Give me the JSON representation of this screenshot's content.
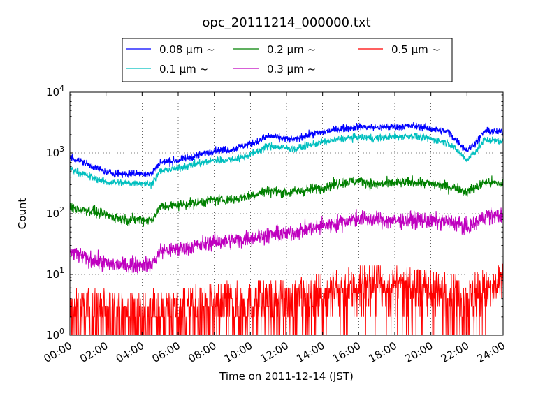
{
  "chart_data": {
    "type": "line",
    "title": "opc_20111214_000000.txt",
    "xlabel": "Time on 2011-12-14 (JST)",
    "ylabel": "Count",
    "x_ticks": [
      "00:00",
      "02:00",
      "04:00",
      "06:00",
      "08:00",
      "10:00",
      "12:00",
      "14:00",
      "16:00",
      "18:00",
      "20:00",
      "22:00",
      "24:00"
    ],
    "x_range_hours": [
      0,
      24
    ],
    "y_scale": "log",
    "ylim": [
      1,
      10000
    ],
    "y_tick_base": "10",
    "y_tick_exponents": [
      "0",
      "1",
      "2",
      "3",
      "4"
    ],
    "grid": true,
    "legend_placement": "top-center",
    "series": [
      {
        "name": "0.08 μm ~",
        "color": "#0000ff",
        "x": [
          0,
          0.5,
          1,
          2,
          3,
          4,
          4.5,
          5,
          6,
          7,
          8,
          9,
          9.5,
          10,
          10.5,
          11,
          12,
          12.5,
          13,
          14,
          15,
          16,
          17,
          18,
          19,
          20,
          21,
          21.5,
          22,
          22.5,
          23,
          24
        ],
        "y": [
          850,
          750,
          650,
          480,
          450,
          460,
          450,
          700,
          750,
          900,
          1100,
          1150,
          1300,
          1400,
          1600,
          1900,
          1700,
          1650,
          1900,
          2200,
          2500,
          2700,
          2600,
          2700,
          2800,
          2500,
          2200,
          1500,
          1100,
          1500,
          2300,
          2200
        ]
      },
      {
        "name": "0.1 μm ~",
        "color": "#00bfbf",
        "x": [
          0,
          0.5,
          1,
          2,
          3,
          4,
          4.5,
          5,
          6,
          7,
          8,
          9,
          9.5,
          10,
          10.5,
          11,
          12,
          12.5,
          13,
          14,
          15,
          16,
          17,
          18,
          19,
          20,
          21,
          21.5,
          22,
          22.5,
          23,
          24
        ],
        "y": [
          560,
          480,
          420,
          330,
          320,
          320,
          310,
          500,
          560,
          660,
          750,
          780,
          850,
          950,
          1100,
          1300,
          1200,
          1150,
          1300,
          1500,
          1700,
          1800,
          1750,
          1850,
          1900,
          1700,
          1450,
          1050,
          770,
          1100,
          1650,
          1550
        ]
      },
      {
        "name": "0.2 μm ~",
        "color": "#008000",
        "x": [
          0,
          1,
          2,
          3,
          4,
          4.5,
          5,
          6,
          7,
          8,
          9,
          10,
          11,
          12,
          13,
          14,
          15,
          16,
          17,
          18,
          19,
          20,
          21,
          21.5,
          22,
          22.5,
          23,
          24
        ],
        "y": [
          125,
          115,
          95,
          80,
          80,
          78,
          130,
          140,
          150,
          170,
          170,
          200,
          240,
          220,
          240,
          270,
          320,
          350,
          300,
          320,
          330,
          310,
          280,
          260,
          230,
          270,
          330,
          310
        ]
      },
      {
        "name": "0.3 μm ~",
        "color": "#bf00bf",
        "x": [
          0,
          1,
          2,
          3,
          4,
          4.5,
          5,
          6,
          7,
          8,
          9,
          10,
          11,
          12,
          13,
          14,
          15,
          16,
          17,
          18,
          19,
          20,
          21,
          21.5,
          22,
          22.5,
          23,
          24
        ],
        "y": [
          24,
          18,
          15,
          14,
          15,
          14,
          24,
          26,
          30,
          34,
          36,
          40,
          45,
          47,
          54,
          62,
          72,
          85,
          78,
          76,
          80,
          75,
          72,
          70,
          58,
          70,
          95,
          90
        ]
      },
      {
        "name": "0.5 μm ~",
        "color": "#ff0000",
        "x": [
          0,
          2,
          4,
          6,
          8,
          10,
          12,
          14,
          15,
          16,
          18,
          20,
          22,
          23,
          24
        ],
        "y": [
          2.2,
          2.1,
          2.0,
          2.4,
          2.8,
          3.2,
          3.5,
          4.5,
          5.5,
          6.2,
          6.0,
          5.0,
          4.0,
          5.5,
          6.5
        ]
      }
    ]
  }
}
